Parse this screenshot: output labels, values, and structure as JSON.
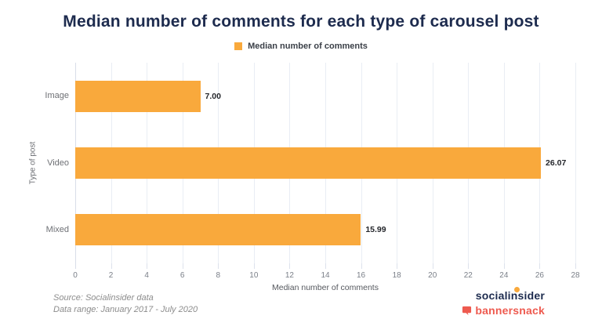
{
  "title": "Median number of comments for each type of carousel post",
  "legend": {
    "label": "Median number of comments",
    "swatch_color": "#f9a93c"
  },
  "chart_data": {
    "type": "bar",
    "orientation": "horizontal",
    "title": "Median number of comments for each type of carousel post",
    "categories": [
      "Image",
      "Video",
      "Mixed"
    ],
    "values": [
      7.0,
      26.07,
      15.99
    ],
    "value_labels": [
      "7.00",
      "26.07",
      "15.99"
    ],
    "xlabel": "Median number of comments",
    "ylabel": "Type of post",
    "xlim": [
      0,
      28
    ],
    "x_ticks": [
      0,
      2,
      4,
      6,
      8,
      10,
      12,
      14,
      16,
      18,
      20,
      22,
      24,
      26,
      28
    ],
    "grid": true,
    "legend_position": "top",
    "bar_color": "#f9a93c",
    "grid_color": "#e9edf4"
  },
  "footer": {
    "source_line1": "Source: Socialinsider data",
    "source_line2": "Data range: January 2017 - July 2020",
    "logo_socialinsider": "socialinsider",
    "logo_bannersnack": "bannersnack"
  },
  "colors": {
    "accent_orange": "#f9a93c",
    "brand_navy": "#1d2b4e",
    "brand_red": "#ee5a4f"
  }
}
